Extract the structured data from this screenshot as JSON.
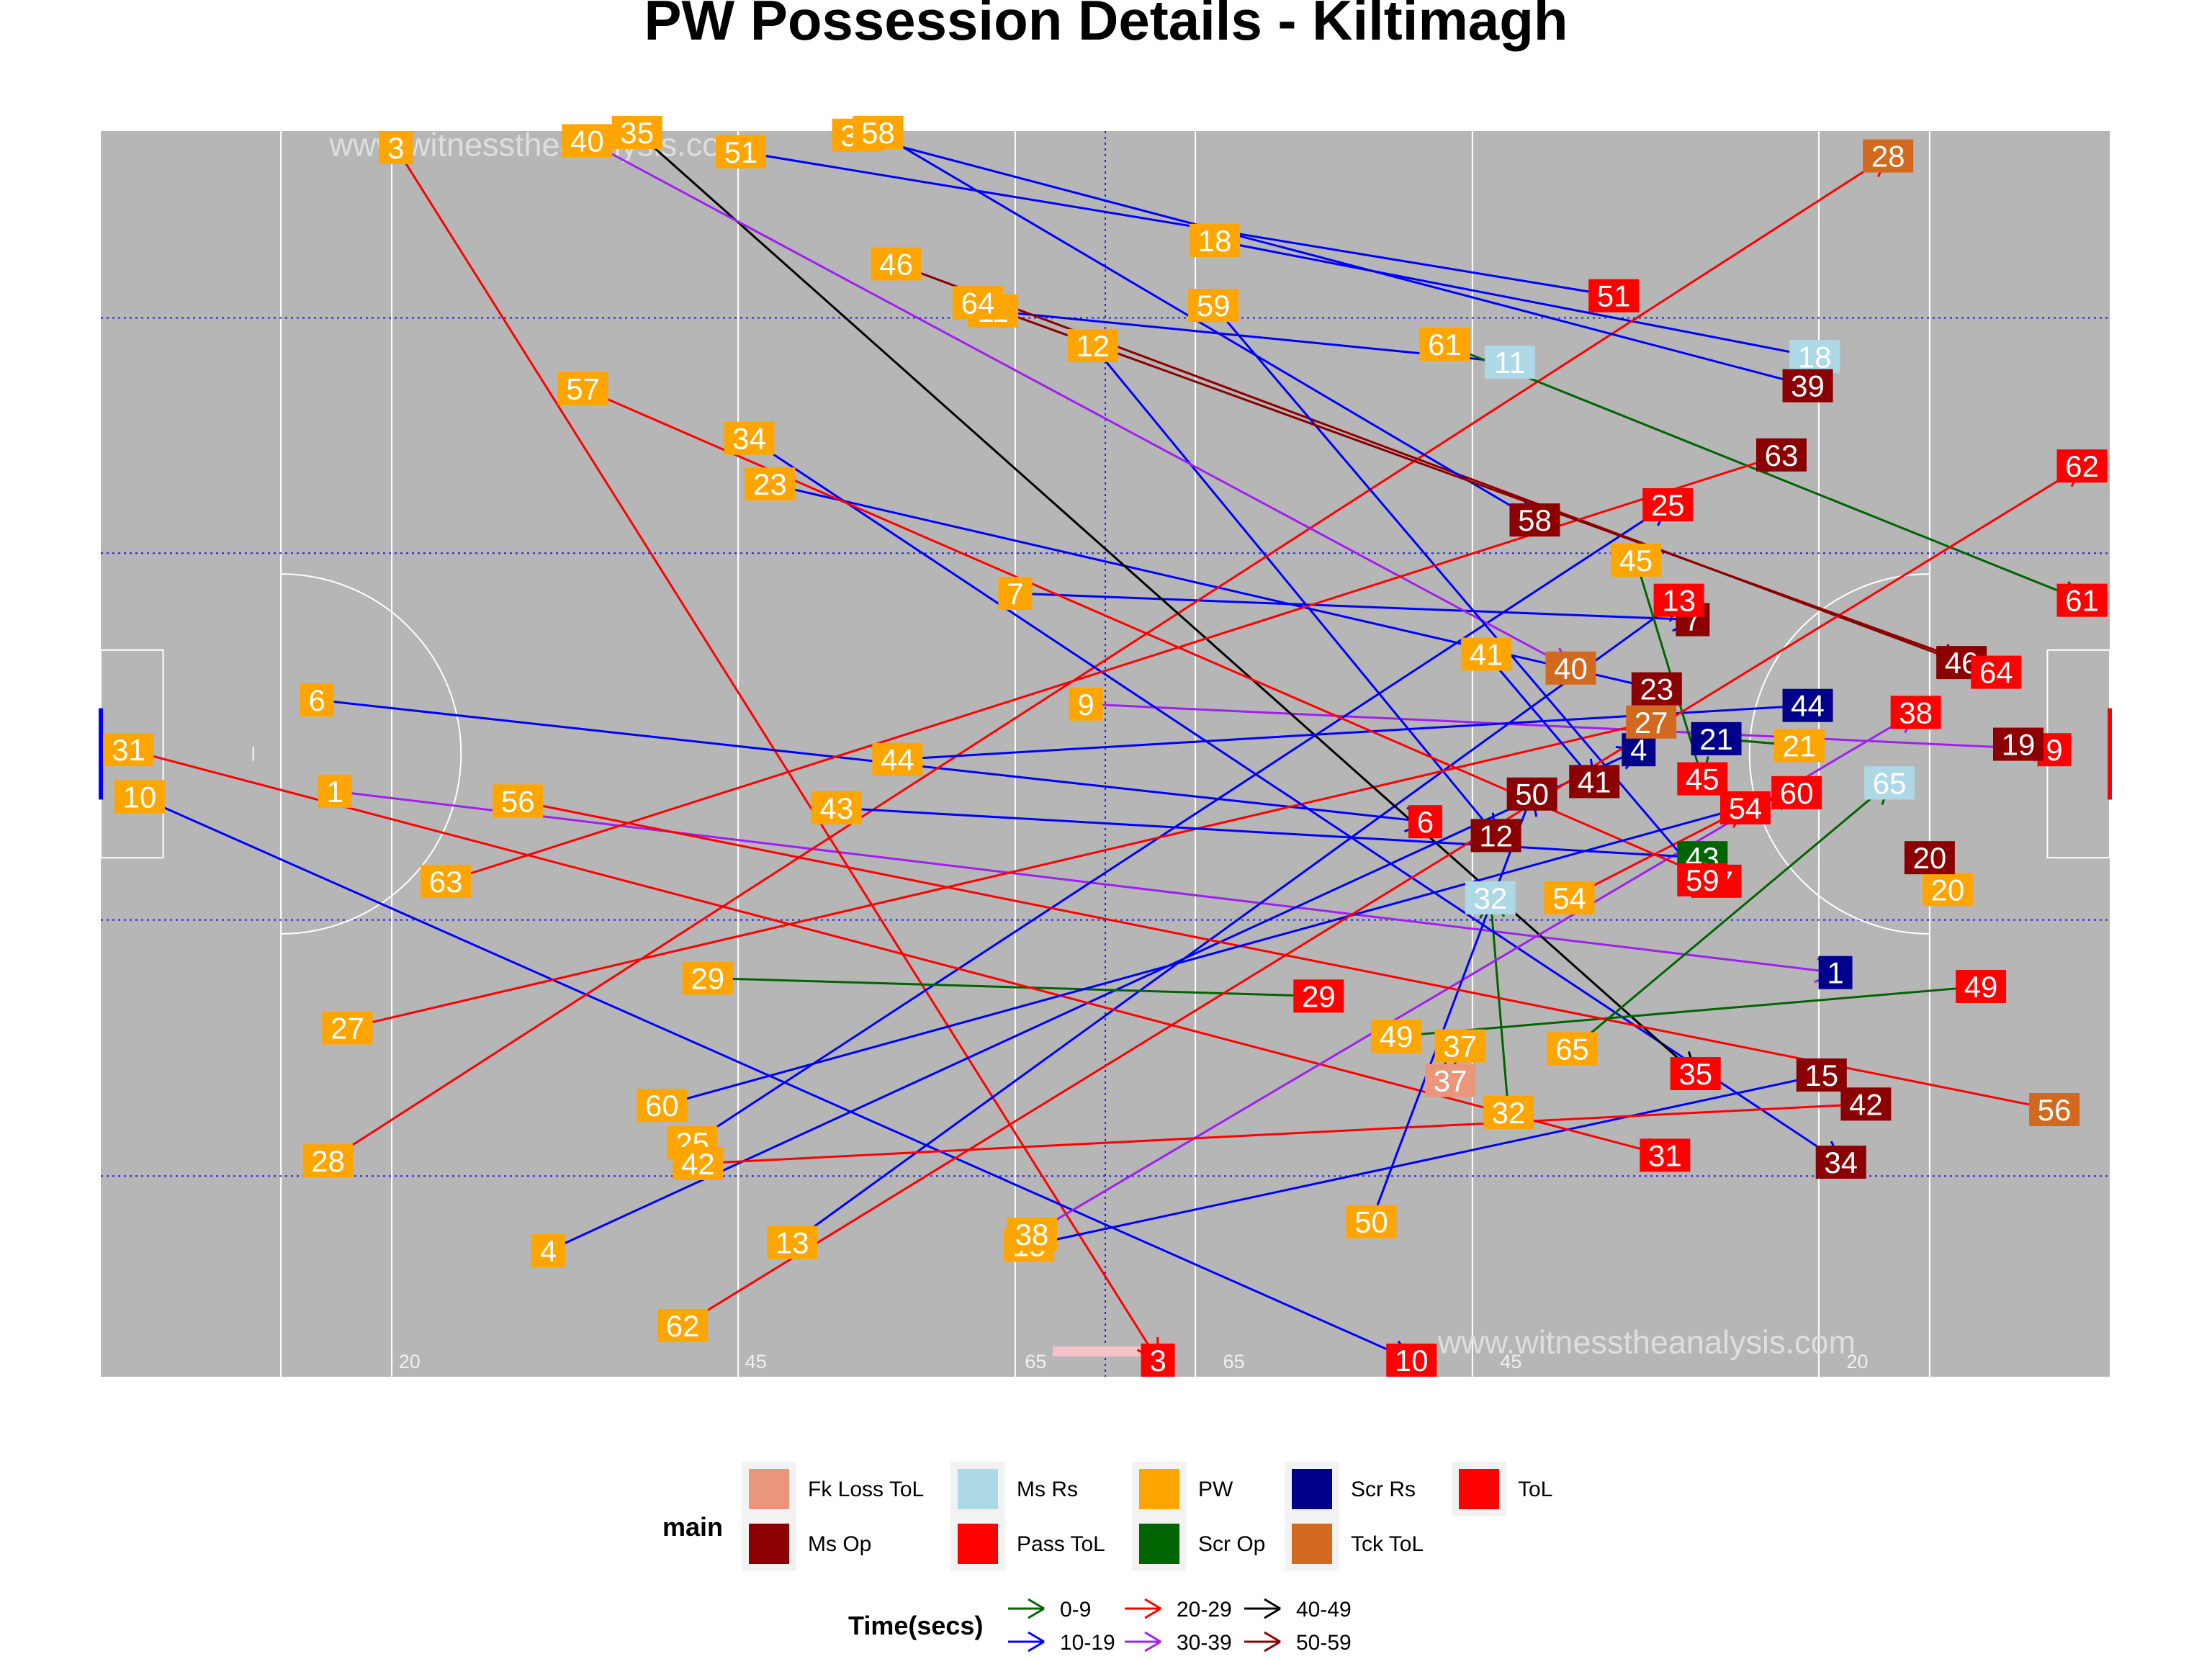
{
  "chart_data": {
    "type": "scatter",
    "title": "PW Possession Details - Kiltimagh",
    "watermark": "www.witnesstheanalysis.com",
    "xlim": [
      0,
      145
    ],
    "ylim": [
      0,
      90
    ],
    "x_tick_labels": [
      {
        "x": 21.5,
        "label": "20"
      },
      {
        "x": 46.5,
        "label": "45"
      },
      {
        "x": 66.7,
        "label": "65"
      },
      {
        "x": 81,
        "label": "65"
      },
      {
        "x": 101,
        "label": "45"
      },
      {
        "x": 126,
        "label": "20"
      }
    ],
    "categories": {
      "Fk Loss ToL": "#E9967A",
      "Ms Rs": "#ADD8E6",
      "PW": "#FFA500",
      "Scr Rs": "#00008B",
      "ToL": "#FF0000",
      "Ms Op": "#8B0000",
      "Pass ToL": "#FF0000",
      "Scr Op": "#006400",
      "Tck ToL": "#D2691E"
    },
    "time_bins": {
      "0-9": "#006400",
      "10-19": "#0000FF",
      "20-29": "#FF0000",
      "30-39": "#A020F0",
      "40-49": "#000000",
      "50-59": "#8B0000"
    },
    "legend": {
      "main_title": "main",
      "main_items": [
        "Fk Loss ToL",
        "Ms Rs",
        "PW",
        "Scr Rs",
        "ToL",
        "Ms Op",
        "Pass ToL",
        "Scr Op",
        "Tck ToL"
      ],
      "time_title": "Time(secs)",
      "time_items": [
        "0-9",
        "10-19",
        "20-29",
        "30-39",
        "40-49",
        "50-59"
      ]
    },
    "possessions": [
      {
        "id": "1",
        "start": [
          16.9,
          42.3
        ],
        "end": [
          125.2,
          29.2
        ],
        "end_type": "Scr Rs",
        "time": "30-39"
      },
      {
        "id": "3",
        "start": [
          21.3,
          88.8
        ],
        "end": [
          76.3,
          1.2
        ],
        "end_type": "ToL",
        "time": "20-29"
      },
      {
        "id": "4",
        "start": [
          32.3,
          9.1
        ],
        "end": [
          111.0,
          45.3
        ],
        "end_type": "Scr Rs",
        "time": "10-19"
      },
      {
        "id": "6",
        "start": [
          15.6,
          48.9
        ],
        "end": [
          95.6,
          40.1
        ],
        "end_type": "ToL",
        "time": "10-19"
      },
      {
        "id": "7",
        "start": [
          66.0,
          56.6
        ],
        "end": [
          114.9,
          54.7
        ],
        "end_type": "Ms Op",
        "time": "10-19"
      },
      {
        "id": "9",
        "start": [
          71.1,
          48.6
        ],
        "end": [
          141.0,
          45.3
        ],
        "end_type": "ToL",
        "time": "30-39"
      },
      {
        "id": "10",
        "start": [
          2.8,
          41.9
        ],
        "end": [
          94.6,
          1.2
        ],
        "end_type": "ToL",
        "time": "10-19"
      },
      {
        "id": "11",
        "start": [
          64.4,
          77.0
        ],
        "end": [
          101.7,
          73.3
        ],
        "end_type": "Ms Rs",
        "time": "10-19"
      },
      {
        "id": "12",
        "start": [
          71.6,
          74.5
        ],
        "end": [
          100.7,
          39.1
        ],
        "end_type": "Ms Op",
        "time": "10-19"
      },
      {
        "id": "13",
        "start": [
          49.9,
          9.7
        ],
        "end": [
          113.9,
          56.1
        ],
        "end_type": "ToL",
        "time": "10-19"
      },
      {
        "id": "15",
        "start": [
          67.0,
          9.5
        ],
        "end": [
          124.2,
          21.8
        ],
        "end_type": "Ms Op",
        "time": "10-19"
      },
      {
        "id": "18",
        "start": [
          80.4,
          82.1
        ],
        "end": [
          123.7,
          73.7
        ],
        "end_type": "Ms Rs",
        "time": "10-19"
      },
      {
        "id": "19",
        "start": [
          138.4,
          45.7
        ],
        "end": [
          138.4,
          45.7
        ],
        "end_type": "Ms Op",
        "time": "10-19"
      },
      {
        "id": "20",
        "start": [
          133.3,
          35.2
        ],
        "end": [
          132.0,
          37.5
        ],
        "end_type": "Ms Op",
        "time": "0-9"
      },
      {
        "id": "21",
        "start": [
          122.6,
          45.6
        ],
        "end": [
          116.6,
          46.1
        ],
        "end_type": "Scr Rs",
        "time": "0-9"
      },
      {
        "id": "23",
        "start": [
          48.3,
          64.5
        ],
        "end": [
          112.3,
          49.7
        ],
        "end_type": "Ms Op",
        "time": "10-19"
      },
      {
        "id": "25",
        "start": [
          42.7,
          16.9
        ],
        "end": [
          113.1,
          63.0
        ],
        "end_type": "ToL",
        "time": "10-19"
      },
      {
        "id": "27",
        "start": [
          17.8,
          25.2
        ],
        "end": [
          111.9,
          47.3
        ],
        "end_type": "Tck ToL",
        "time": "20-29"
      },
      {
        "id": "28",
        "start": [
          16.4,
          15.6
        ],
        "end": [
          129.0,
          88.2
        ],
        "end_type": "Tck ToL",
        "time": "20-29"
      },
      {
        "id": "29",
        "start": [
          43.8,
          28.8
        ],
        "end": [
          87.9,
          27.5
        ],
        "end_type": "ToL",
        "time": "0-9"
      },
      {
        "id": "31",
        "start": [
          2.0,
          45.3
        ],
        "end": [
          112.9,
          16.0
        ],
        "end_type": "ToL",
        "time": "20-29"
      },
      {
        "id": "32",
        "start": [
          101.6,
          19.1
        ],
        "end": [
          100.3,
          34.6
        ],
        "end_type": "Ms Rs",
        "time": "0-9"
      },
      {
        "id": "34",
        "start": [
          46.8,
          67.8
        ],
        "end": [
          125.6,
          15.5
        ],
        "end_type": "Ms Op",
        "time": "10-19"
      },
      {
        "id": "35",
        "start": [
          38.7,
          89.9
        ],
        "end": [
          115.1,
          21.9
        ],
        "end_type": "ToL",
        "time": "40-49"
      },
      {
        "id": "37",
        "start": [
          98.1,
          23.9
        ],
        "end": [
          97.4,
          21.4
        ],
        "end_type": "Fk Loss ToL",
        "time": "0-9"
      },
      {
        "id": "38",
        "start": [
          67.2,
          10.3
        ],
        "end": [
          131.0,
          48.0
        ],
        "end_type": "ToL",
        "time": "30-39"
      },
      {
        "id": "39",
        "start": [
          54.6,
          89.7
        ],
        "end": [
          123.2,
          71.6
        ],
        "end_type": "Ms Op",
        "time": "10-19"
      },
      {
        "id": "40",
        "start": [
          35.1,
          89.3
        ],
        "end": [
          106.1,
          51.2
        ],
        "end_type": "Tck ToL",
        "time": "30-39"
      },
      {
        "id": "41",
        "start": [
          100.0,
          52.2
        ],
        "end": [
          107.8,
          43.0
        ],
        "end_type": "Ms Op",
        "time": "10-19"
      },
      {
        "id": "42",
        "start": [
          43.1,
          15.4
        ],
        "end": [
          127.4,
          19.7
        ],
        "end_type": "Ms Op",
        "time": "20-29"
      },
      {
        "id": "43",
        "start": [
          53.1,
          41.1
        ],
        "end": [
          115.6,
          37.5
        ],
        "end_type": "Scr Op",
        "time": "10-19"
      },
      {
        "id": "44",
        "start": [
          57.5,
          44.6
        ],
        "end": [
          123.2,
          48.5
        ],
        "end_type": "Scr Rs",
        "time": "10-19"
      },
      {
        "id": "45",
        "start": [
          110.8,
          59.0
        ],
        "end": [
          115.6,
          43.2
        ],
        "end_type": "ToL",
        "time": "0-9"
      },
      {
        "id": "46",
        "start": [
          57.4,
          80.4
        ],
        "end": [
          134.3,
          51.6
        ],
        "end_type": "Ms Op",
        "time": "50-59"
      },
      {
        "id": "49",
        "start": [
          93.5,
          24.6
        ],
        "end": [
          135.7,
          28.2
        ],
        "end_type": "ToL",
        "time": "0-9"
      },
      {
        "id": "50",
        "start": [
          91.7,
          11.2
        ],
        "end": [
          103.3,
          42.1
        ],
        "end_type": "Ms Op",
        "time": "10-19"
      },
      {
        "id": "51",
        "start": [
          46.2,
          88.5
        ],
        "end": [
          109.2,
          78.1
        ],
        "end_type": "ToL",
        "time": "10-19"
      },
      {
        "id": "54",
        "start": [
          106.0,
          34.6
        ],
        "end": [
          118.7,
          41.1
        ],
        "end_type": "ToL",
        "time": "20-29"
      },
      {
        "id": "56",
        "start": [
          30.1,
          41.6
        ],
        "end": [
          141.0,
          19.3
        ],
        "end_type": "Tck ToL",
        "time": "20-29"
      },
      {
        "id": "57",
        "start": [
          34.8,
          71.4
        ],
        "end": [
          116.6,
          35.8
        ],
        "end_type": "ToL",
        "time": "20-29"
      },
      {
        "id": "58",
        "start": [
          56.1,
          89.9
        ],
        "end": [
          103.5,
          61.9
        ],
        "end_type": "Ms Op",
        "time": "10-19"
      },
      {
        "id": "59",
        "start": [
          80.3,
          77.4
        ],
        "end": [
          115.6,
          35.9
        ],
        "end_type": "ToL",
        "time": "10-19"
      },
      {
        "id": "60",
        "start": [
          40.5,
          19.6
        ],
        "end": [
          122.4,
          42.2
        ],
        "end_type": "ToL",
        "time": "10-19"
      },
      {
        "id": "61",
        "start": [
          97.0,
          74.6
        ],
        "end": [
          143.0,
          56.1
        ],
        "end_type": "ToL",
        "time": "0-9"
      },
      {
        "id": "62",
        "start": [
          42.0,
          3.7
        ],
        "end": [
          143.0,
          65.8
        ],
        "end_type": "ToL",
        "time": "20-29"
      },
      {
        "id": "63",
        "start": [
          24.9,
          35.8
        ],
        "end": [
          121.3,
          66.6
        ],
        "end_type": "Ms Op",
        "time": "20-29"
      },
      {
        "id": "64",
        "start": [
          63.3,
          77.6
        ],
        "end": [
          136.8,
          50.9
        ],
        "end_type": "ToL",
        "time": "50-59"
      },
      {
        "id": "65",
        "start": [
          106.2,
          23.7
        ],
        "end": [
          129.1,
          42.9
        ],
        "end_type": "Ms Rs",
        "time": "0-9"
      }
    ]
  }
}
